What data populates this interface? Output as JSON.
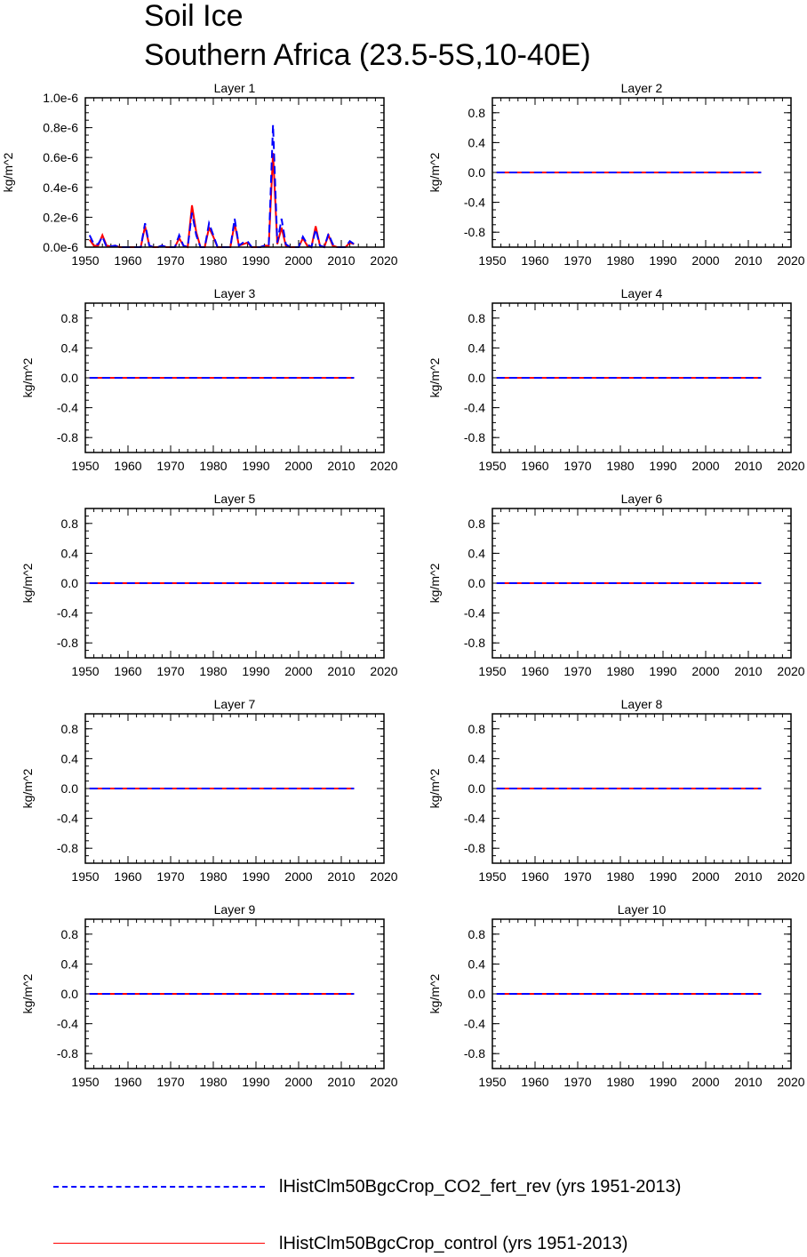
{
  "title": "Soil Ice",
  "subtitle": "Southern Africa (23.5-5S,10-40E)",
  "colors": {
    "co2_fert_rev": "#0000ff",
    "control": "#ff0000"
  },
  "legend": [
    {
      "label": "lHistClm50BgcCrop_CO2_fert_rev (yrs 1951-2013)",
      "color": "#0000ff",
      "style": "dashed"
    },
    {
      "label": "lHistClm50BgcCrop_control (yrs 1951-2013)",
      "color": "#ff0000",
      "style": "solid"
    }
  ],
  "chart_data": [
    {
      "type": "line",
      "title": "Layer 1",
      "ylabel": "kg/m^2",
      "xlim": [
        1950,
        2020
      ],
      "ylim": [
        0,
        1e-06
      ],
      "xticks": [
        1950,
        1960,
        1970,
        1980,
        1990,
        2000,
        2010,
        2020
      ],
      "yticks": [
        0,
        2e-07,
        4e-07,
        6e-07,
        8e-07,
        1e-06
      ],
      "ytick_labels": [
        "0.0e-6",
        "0.2e-6",
        "0.4e-6",
        "0.6e-6",
        "0.8e-6",
        "1.0e-6"
      ],
      "x": [
        1951,
        1952,
        1953,
        1954,
        1955,
        1956,
        1957,
        1958,
        1959,
        1960,
        1961,
        1962,
        1963,
        1964,
        1965,
        1966,
        1967,
        1968,
        1969,
        1970,
        1971,
        1972,
        1973,
        1974,
        1975,
        1976,
        1977,
        1978,
        1979,
        1980,
        1981,
        1982,
        1983,
        1984,
        1985,
        1986,
        1987,
        1988,
        1989,
        1990,
        1991,
        1992,
        1993,
        1994,
        1995,
        1996,
        1997,
        1998,
        1999,
        2000,
        2001,
        2002,
        2003,
        2004,
        2005,
        2006,
        2007,
        2008,
        2009,
        2010,
        2011,
        2012,
        2013
      ],
      "series": [
        {
          "name": "lHistClm50BgcCrop_CO2_fert_rev (yrs 1951-2013)",
          "color": "#0000ff",
          "style": "dashed",
          "values": [
            8e-08,
            2e-08,
            2e-08,
            7e-08,
            0,
            5e-09,
            1e-08,
            0,
            0,
            0,
            0,
            0,
            0,
            1.6e-07,
            1e-08,
            0,
            0,
            1e-08,
            0,
            0,
            0,
            8e-08,
            1e-08,
            0,
            2.3e-07,
            8e-08,
            0,
            0,
            1.6e-07,
            8e-08,
            0,
            0,
            0,
            0,
            1.9e-07,
            1e-08,
            3e-08,
            4e-08,
            0,
            0,
            0,
            1e-08,
            1e-08,
            8.2e-07,
            3e-08,
            1.9e-07,
            2e-08,
            0,
            0,
            0,
            7e-08,
            2e-08,
            0,
            1.2e-07,
            1e-08,
            0,
            9e-08,
            2e-08,
            0,
            0,
            0,
            4e-08,
            2e-08
          ]
        },
        {
          "name": "lHistClm50BgcCrop_control (yrs 1951-2013)",
          "color": "#ff0000",
          "style": "solid",
          "values": [
            5e-08,
            1e-08,
            1e-08,
            8e-08,
            1e-08,
            5e-09,
            1e-08,
            0,
            0,
            0,
            0,
            0,
            0,
            1.4e-07,
            1e-08,
            0,
            0,
            1e-08,
            0,
            0,
            0,
            6e-08,
            1e-08,
            0,
            2.8e-07,
            1e-07,
            0,
            0,
            1.3e-07,
            7e-08,
            0,
            0,
            0,
            0,
            1.6e-07,
            1e-08,
            2e-08,
            3e-08,
            0,
            0,
            0,
            1e-08,
            1e-08,
            6.3e-07,
            2e-08,
            1.3e-07,
            1e-08,
            0,
            0,
            0,
            6e-08,
            1e-08,
            0,
            1.4e-07,
            1e-08,
            0,
            8e-08,
            1e-08,
            0,
            0,
            0,
            3e-08,
            2e-08
          ]
        }
      ]
    },
    {
      "type": "line",
      "title": "Layer 2",
      "ylabel": "kg/m^2",
      "xlim": [
        1950,
        2020
      ],
      "ylim": [
        -1,
        1
      ],
      "xticks": [
        1950,
        1960,
        1970,
        1980,
        1990,
        2000,
        2010,
        2020
      ],
      "yticks": [
        -0.8,
        -0.4,
        0,
        0.4,
        0.8
      ],
      "ytick_labels": [
        "-0.8",
        "-0.4",
        "0.0",
        "0.4",
        "0.8"
      ],
      "x": [
        1951,
        2013
      ],
      "series": [
        {
          "name": "lHistClm50BgcCrop_CO2_fert_rev (yrs 1951-2013)",
          "color": "#0000ff",
          "style": "dashed",
          "values": [
            0,
            0
          ]
        },
        {
          "name": "lHistClm50BgcCrop_control (yrs 1951-2013)",
          "color": "#ff0000",
          "style": "solid",
          "values": [
            0,
            0
          ]
        }
      ]
    },
    {
      "type": "line",
      "title": "Layer 3",
      "ylabel": "kg/m^2",
      "xlim": [
        1950,
        2020
      ],
      "ylim": [
        -1,
        1
      ],
      "xticks": [
        1950,
        1960,
        1970,
        1980,
        1990,
        2000,
        2010,
        2020
      ],
      "yticks": [
        -0.8,
        -0.4,
        0,
        0.4,
        0.8
      ],
      "ytick_labels": [
        "-0.8",
        "-0.4",
        "0.0",
        "0.4",
        "0.8"
      ],
      "x": [
        1951,
        2013
      ],
      "series": [
        {
          "name": "lHistClm50BgcCrop_CO2_fert_rev (yrs 1951-2013)",
          "color": "#0000ff",
          "style": "dashed",
          "values": [
            0,
            0
          ]
        },
        {
          "name": "lHistClm50BgcCrop_control (yrs 1951-2013)",
          "color": "#ff0000",
          "style": "solid",
          "values": [
            0,
            0
          ]
        }
      ]
    },
    {
      "type": "line",
      "title": "Layer 4",
      "ylabel": "kg/m^2",
      "xlim": [
        1950,
        2020
      ],
      "ylim": [
        -1,
        1
      ],
      "xticks": [
        1950,
        1960,
        1970,
        1980,
        1990,
        2000,
        2010,
        2020
      ],
      "yticks": [
        -0.8,
        -0.4,
        0,
        0.4,
        0.8
      ],
      "ytick_labels": [
        "-0.8",
        "-0.4",
        "0.0",
        "0.4",
        "0.8"
      ],
      "x": [
        1951,
        2013
      ],
      "series": [
        {
          "name": "lHistClm50BgcCrop_CO2_fert_rev (yrs 1951-2013)",
          "color": "#0000ff",
          "style": "dashed",
          "values": [
            0,
            0
          ]
        },
        {
          "name": "lHistClm50BgcCrop_control (yrs 1951-2013)",
          "color": "#ff0000",
          "style": "solid",
          "values": [
            0,
            0
          ]
        }
      ]
    },
    {
      "type": "line",
      "title": "Layer 5",
      "ylabel": "kg/m^2",
      "xlim": [
        1950,
        2020
      ],
      "ylim": [
        -1,
        1
      ],
      "xticks": [
        1950,
        1960,
        1970,
        1980,
        1990,
        2000,
        2010,
        2020
      ],
      "yticks": [
        -0.8,
        -0.4,
        0,
        0.4,
        0.8
      ],
      "ytick_labels": [
        "-0.8",
        "-0.4",
        "0.0",
        "0.4",
        "0.8"
      ],
      "x": [
        1951,
        2013
      ],
      "series": [
        {
          "name": "lHistClm50BgcCrop_CO2_fert_rev (yrs 1951-2013)",
          "color": "#0000ff",
          "style": "dashed",
          "values": [
            0,
            0
          ]
        },
        {
          "name": "lHistClm50BgcCrop_control (yrs 1951-2013)",
          "color": "#ff0000",
          "style": "solid",
          "values": [
            0,
            0
          ]
        }
      ]
    },
    {
      "type": "line",
      "title": "Layer 6",
      "ylabel": "kg/m^2",
      "xlim": [
        1950,
        2020
      ],
      "ylim": [
        -1,
        1
      ],
      "xticks": [
        1950,
        1960,
        1970,
        1980,
        1990,
        2000,
        2010,
        2020
      ],
      "yticks": [
        -0.8,
        -0.4,
        0,
        0.4,
        0.8
      ],
      "ytick_labels": [
        "-0.8",
        "-0.4",
        "0.0",
        "0.4",
        "0.8"
      ],
      "x": [
        1951,
        2013
      ],
      "series": [
        {
          "name": "lHistClm50BgcCrop_CO2_fert_rev (yrs 1951-2013)",
          "color": "#0000ff",
          "style": "dashed",
          "values": [
            0,
            0
          ]
        },
        {
          "name": "lHistClm50BgcCrop_control (yrs 1951-2013)",
          "color": "#ff0000",
          "style": "solid",
          "values": [
            0,
            0
          ]
        }
      ]
    },
    {
      "type": "line",
      "title": "Layer 7",
      "ylabel": "kg/m^2",
      "xlim": [
        1950,
        2020
      ],
      "ylim": [
        -1,
        1
      ],
      "xticks": [
        1950,
        1960,
        1970,
        1980,
        1990,
        2000,
        2010,
        2020
      ],
      "yticks": [
        -0.8,
        -0.4,
        0,
        0.4,
        0.8
      ],
      "ytick_labels": [
        "-0.8",
        "-0.4",
        "0.0",
        "0.4",
        "0.8"
      ],
      "x": [
        1951,
        2013
      ],
      "series": [
        {
          "name": "lHistClm50BgcCrop_CO2_fert_rev (yrs 1951-2013)",
          "color": "#0000ff",
          "style": "dashed",
          "values": [
            0,
            0
          ]
        },
        {
          "name": "lHistClm50BgcCrop_control (yrs 1951-2013)",
          "color": "#ff0000",
          "style": "solid",
          "values": [
            0,
            0
          ]
        }
      ]
    },
    {
      "type": "line",
      "title": "Layer 8",
      "ylabel": "kg/m^2",
      "xlim": [
        1950,
        2020
      ],
      "ylim": [
        -1,
        1
      ],
      "xticks": [
        1950,
        1960,
        1970,
        1980,
        1990,
        2000,
        2010,
        2020
      ],
      "yticks": [
        -0.8,
        -0.4,
        0,
        0.4,
        0.8
      ],
      "ytick_labels": [
        "-0.8",
        "-0.4",
        "0.0",
        "0.4",
        "0.8"
      ],
      "x": [
        1951,
        2013
      ],
      "series": [
        {
          "name": "lHistClm50BgcCrop_CO2_fert_rev (yrs 1951-2013)",
          "color": "#0000ff",
          "style": "dashed",
          "values": [
            0,
            0
          ]
        },
        {
          "name": "lHistClm50BgcCrop_control (yrs 1951-2013)",
          "color": "#ff0000",
          "style": "solid",
          "values": [
            0,
            0
          ]
        }
      ]
    },
    {
      "type": "line",
      "title": "Layer 9",
      "ylabel": "kg/m^2",
      "xlim": [
        1950,
        2020
      ],
      "ylim": [
        -1,
        1
      ],
      "xticks": [
        1950,
        1960,
        1970,
        1980,
        1990,
        2000,
        2010,
        2020
      ],
      "yticks": [
        -0.8,
        -0.4,
        0,
        0.4,
        0.8
      ],
      "ytick_labels": [
        "-0.8",
        "-0.4",
        "0.0",
        "0.4",
        "0.8"
      ],
      "x": [
        1951,
        2013
      ],
      "series": [
        {
          "name": "lHistClm50BgcCrop_CO2_fert_rev (yrs 1951-2013)",
          "color": "#0000ff",
          "style": "dashed",
          "values": [
            0,
            0
          ]
        },
        {
          "name": "lHistClm50BgcCrop_control (yrs 1951-2013)",
          "color": "#ff0000",
          "style": "solid",
          "values": [
            0,
            0
          ]
        }
      ]
    },
    {
      "type": "line",
      "title": "Layer 10",
      "ylabel": "kg/m^2",
      "xlim": [
        1950,
        2020
      ],
      "ylim": [
        -1,
        1
      ],
      "xticks": [
        1950,
        1960,
        1970,
        1980,
        1990,
        2000,
        2010,
        2020
      ],
      "yticks": [
        -0.8,
        -0.4,
        0,
        0.4,
        0.8
      ],
      "ytick_labels": [
        "-0.8",
        "-0.4",
        "0.0",
        "0.4",
        "0.8"
      ],
      "x": [
        1951,
        2013
      ],
      "series": [
        {
          "name": "lHistClm50BgcCrop_CO2_fert_rev (yrs 1951-2013)",
          "color": "#0000ff",
          "style": "dashed",
          "values": [
            0,
            0
          ]
        },
        {
          "name": "lHistClm50BgcCrop_control (yrs 1951-2013)",
          "color": "#ff0000",
          "style": "solid",
          "values": [
            0,
            0
          ]
        }
      ]
    }
  ]
}
